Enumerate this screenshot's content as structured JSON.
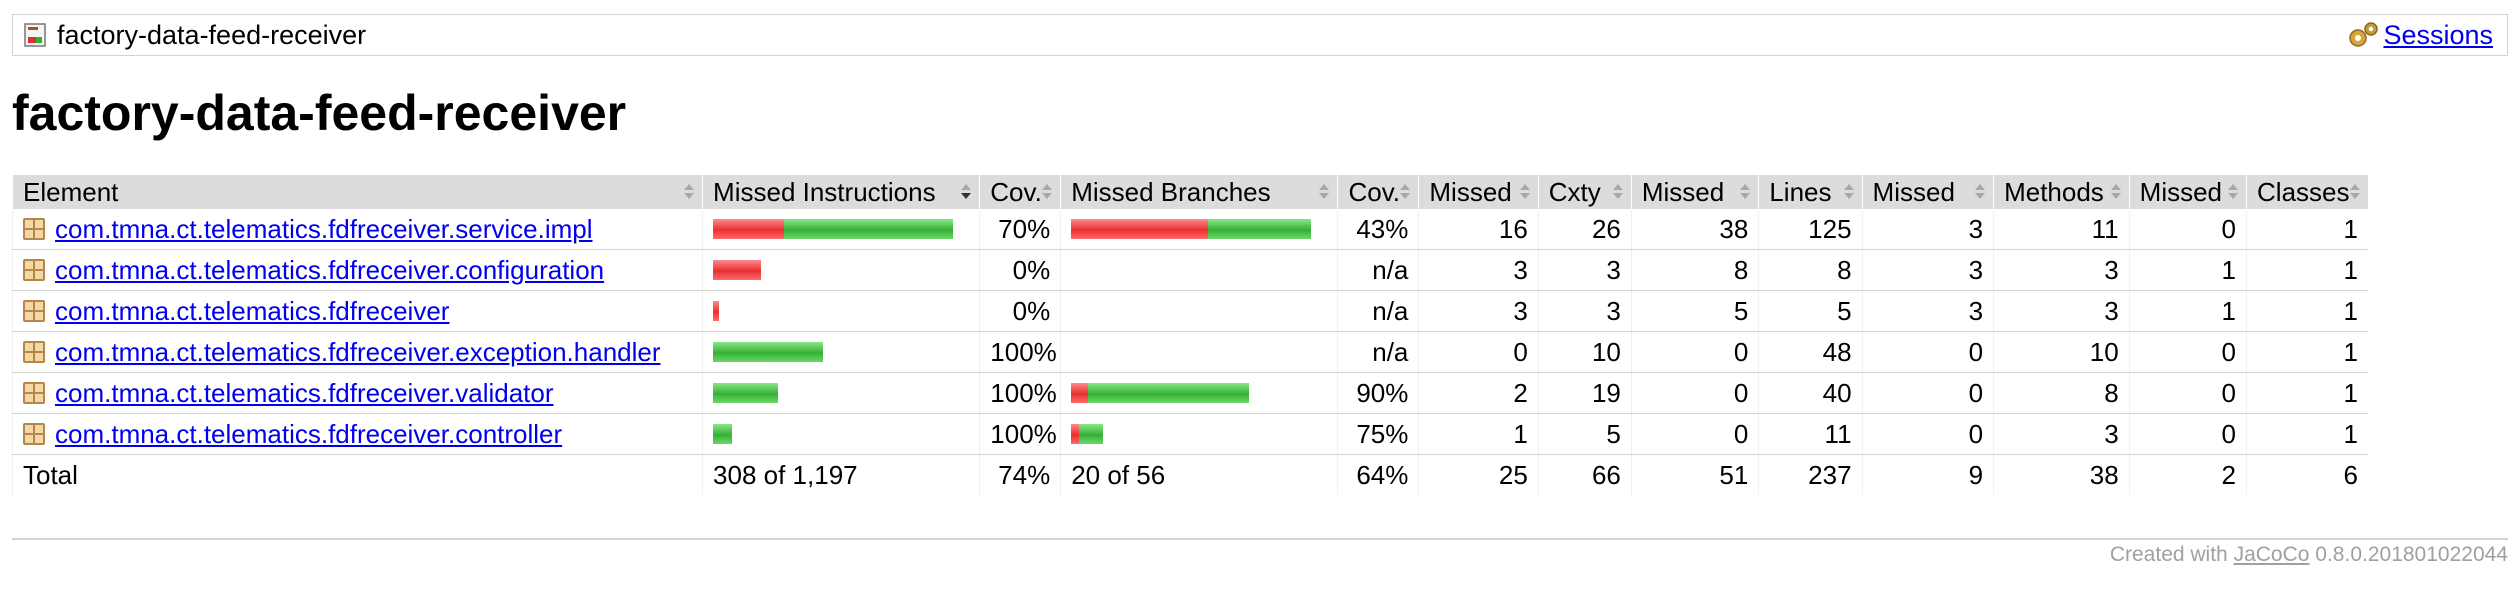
{
  "breadcrumb": {
    "title": "factory-data-feed-receiver",
    "icon": "report-icon",
    "sessions_label": "Sessions",
    "sessions_icon": "gears-icon"
  },
  "page_title": "factory-data-feed-receiver",
  "table": {
    "headers": {
      "element": "Element",
      "missed_instructions": "Missed Instructions",
      "cov1": "Cov.",
      "missed_branches": "Missed Branches",
      "cov2": "Cov.",
      "missed_cxty": "Missed",
      "cxty": "Cxty",
      "missed_lines": "Missed",
      "lines": "Lines",
      "missed_methods": "Missed",
      "methods": "Methods",
      "missed_classes": "Missed",
      "classes": "Classes"
    },
    "rows": [
      {
        "element": "com.tmna.ct.telematics.fdfreceiver.service.impl",
        "instr_missed_frac": 0.296,
        "instr_total_frac": 1.0,
        "cov1": "70%",
        "branch_missed_frac": 0.57,
        "branch_total_frac": 1.0,
        "cov2": "43%",
        "missed_cxty": "16",
        "cxty": "26",
        "missed_lines": "38",
        "lines": "125",
        "missed_methods": "3",
        "methods": "11",
        "missed_classes": "0",
        "classes": "1"
      },
      {
        "element": "com.tmna.ct.telematics.fdfreceiver.configuration",
        "instr_missed_frac": 0.2,
        "instr_total_frac": 0.2,
        "cov1": "0%",
        "branch_missed_frac": 0,
        "branch_total_frac": 0,
        "cov2": "n/a",
        "missed_cxty": "3",
        "cxty": "3",
        "missed_lines": "8",
        "lines": "8",
        "missed_methods": "3",
        "methods": "3",
        "missed_classes": "1",
        "classes": "1"
      },
      {
        "element": "com.tmna.ct.telematics.fdfreceiver",
        "instr_missed_frac": 0.027,
        "instr_total_frac": 0.027,
        "cov1": "0%",
        "branch_missed_frac": 0,
        "branch_total_frac": 0,
        "cov2": "n/a",
        "missed_cxty": "3",
        "cxty": "3",
        "missed_lines": "5",
        "lines": "5",
        "missed_methods": "3",
        "methods": "3",
        "missed_classes": "1",
        "classes": "1"
      },
      {
        "element": "com.tmna.ct.telematics.fdfreceiver.exception.handler",
        "instr_missed_frac": 0,
        "instr_total_frac": 0.46,
        "cov1": "100%",
        "branch_missed_frac": 0,
        "branch_total_frac": 0,
        "cov2": "n/a",
        "missed_cxty": "0",
        "cxty": "10",
        "missed_lines": "0",
        "lines": "48",
        "missed_methods": "0",
        "methods": "10",
        "missed_classes": "0",
        "classes": "1"
      },
      {
        "element": "com.tmna.ct.telematics.fdfreceiver.validator",
        "instr_missed_frac": 0,
        "instr_total_frac": 0.27,
        "cov1": "100%",
        "branch_missed_frac": 0.07,
        "branch_total_frac": 0.74,
        "cov2": "90%",
        "missed_cxty": "2",
        "cxty": "19",
        "missed_lines": "0",
        "lines": "40",
        "missed_methods": "0",
        "methods": "8",
        "missed_classes": "0",
        "classes": "1"
      },
      {
        "element": "com.tmna.ct.telematics.fdfreceiver.controller",
        "instr_missed_frac": 0,
        "instr_total_frac": 0.08,
        "cov1": "100%",
        "branch_missed_frac": 0.033,
        "branch_total_frac": 0.133,
        "cov2": "75%",
        "missed_cxty": "1",
        "cxty": "5",
        "missed_lines": "0",
        "lines": "11",
        "missed_methods": "0",
        "methods": "3",
        "missed_classes": "0",
        "classes": "1"
      }
    ],
    "total": {
      "label": "Total",
      "instructions": "308 of 1,197",
      "cov1": "74%",
      "branches": "20 of 56",
      "cov2": "64%",
      "missed_cxty": "25",
      "cxty": "66",
      "missed_lines": "51",
      "lines": "237",
      "missed_methods": "9",
      "methods": "38",
      "missed_classes": "2",
      "classes": "6"
    }
  },
  "footer": {
    "prefix": "Created with",
    "link": "JaCoCo",
    "version": "0.8.0.201801022044"
  },
  "colors": {
    "missed": "#e83030",
    "covered": "#34b034",
    "link": "#0000ee",
    "header_bg": "#dcdcdc"
  }
}
